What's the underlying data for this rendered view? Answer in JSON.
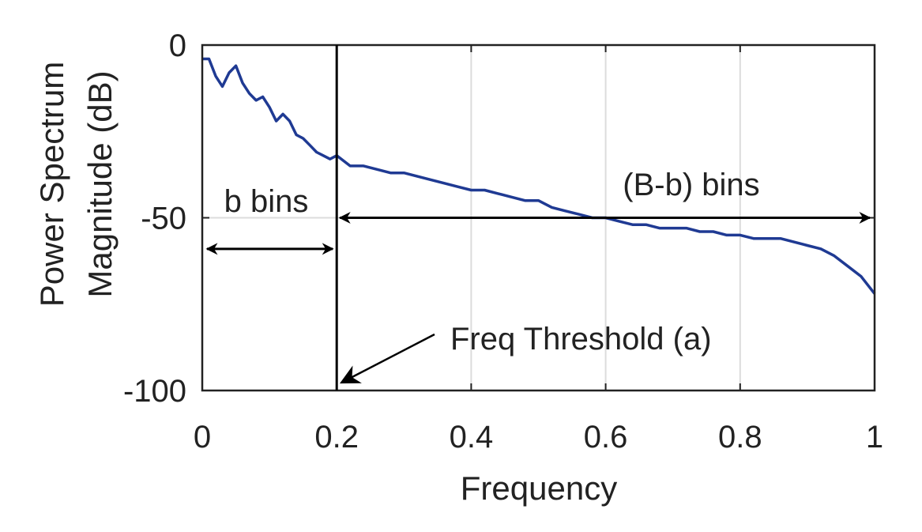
{
  "chart_data": {
    "type": "line",
    "xlabel": "Frequency",
    "ylabel": [
      "Power Spectrum",
      "Magnitude (dB)"
    ],
    "xlim": [
      0,
      1
    ],
    "ylim": [
      -100,
      0
    ],
    "xticks": [
      0,
      0.2,
      0.4,
      0.6,
      0.8,
      1
    ],
    "xtick_labels": [
      "0",
      "0.2",
      "0.4",
      "0.6",
      "0.8",
      "1"
    ],
    "yticks": [
      0,
      -50,
      -100
    ],
    "ytick_labels": [
      "0",
      "-50",
      "-100"
    ],
    "grid": true,
    "series_color": "#1f3a93",
    "series": [
      {
        "x": [
          0,
          0.01,
          0.02,
          0.03,
          0.04,
          0.05,
          0.06,
          0.07,
          0.08,
          0.09,
          0.1,
          0.11,
          0.12,
          0.13,
          0.14,
          0.15,
          0.16,
          0.17,
          0.18,
          0.19,
          0.2,
          0.22,
          0.24,
          0.26,
          0.28,
          0.3,
          0.32,
          0.34,
          0.36,
          0.38,
          0.4,
          0.42,
          0.44,
          0.46,
          0.48,
          0.5,
          0.52,
          0.54,
          0.56,
          0.58,
          0.6,
          0.62,
          0.64,
          0.66,
          0.68,
          0.7,
          0.72,
          0.74,
          0.76,
          0.78,
          0.8,
          0.82,
          0.84,
          0.86,
          0.88,
          0.9,
          0.92,
          0.94,
          0.96,
          0.98,
          1.0
        ],
        "values": [
          -4,
          -4,
          -9,
          -12,
          -8,
          -6,
          -11,
          -14,
          -16,
          -15,
          -18,
          -22,
          -20,
          -22,
          -26,
          -27,
          -29,
          -31,
          -32,
          -33,
          -32,
          -35,
          -35,
          -36,
          -37,
          -37,
          -38,
          -39,
          -40,
          -41,
          -42,
          -42,
          -43,
          -44,
          -45,
          -45,
          -47,
          -48,
          -49,
          -50,
          -50,
          -51,
          -52,
          -52,
          -53,
          -53,
          -53,
          -54,
          -54,
          -55,
          -55,
          -56,
          -56,
          -56,
          -57,
          -58,
          -59,
          -61,
          -64,
          -67,
          -72
        ]
      }
    ],
    "threshold_x": 0.2,
    "threshold_label": "Freq Threshold (a)",
    "b_bins_label": "b bins",
    "Bb_bins_label": "(B-b) bins",
    "arrow_y_bb": -50,
    "arrow_y_b": -59
  }
}
